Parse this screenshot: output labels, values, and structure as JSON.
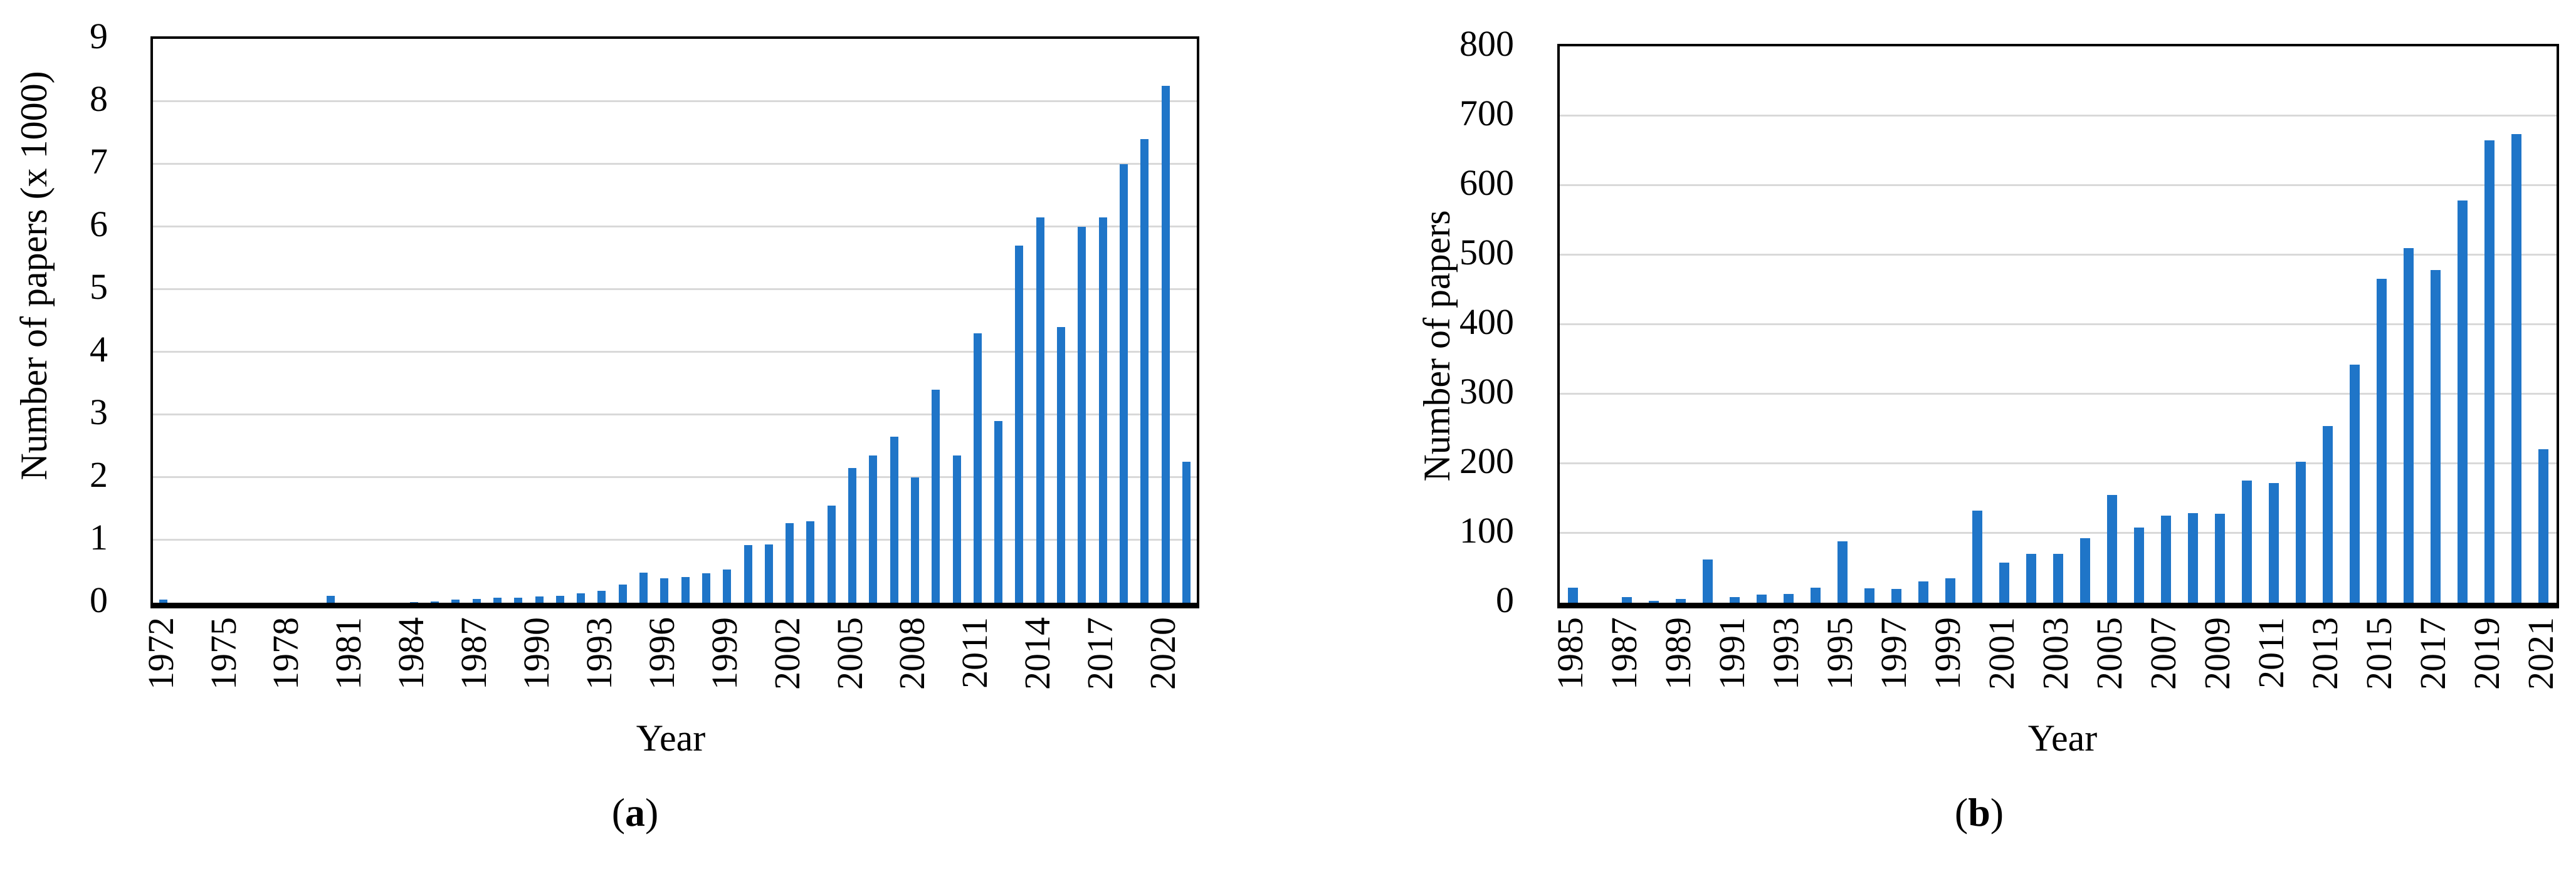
{
  "figure": {
    "background": "#FFFFFF",
    "x_axis_title_a": "Year",
    "x_axis_title_b": "Year"
  },
  "colors": {
    "bar": "#1F75C8",
    "gridline": "#D9D9D9",
    "axis": "#000000",
    "text": "#000000",
    "background": "#FFFFFF"
  },
  "chart_data": [
    {
      "id": "a",
      "type": "bar",
      "title": "",
      "xlabel": "Year",
      "ylabel": "Number of papers (x 1000)",
      "ylim": [
        0,
        9
      ],
      "y_ticks": [
        0,
        1,
        2,
        3,
        4,
        5,
        6,
        7,
        8,
        9
      ],
      "grid": "horizontal",
      "legend": "none",
      "caption": {
        "open": "(",
        "letter": "a",
        "close": ")"
      },
      "x_tick_step": 3,
      "x_tick_labels": [
        "1972",
        "1975",
        "1978",
        "1981",
        "1984",
        "1987",
        "1990",
        "1993",
        "1996",
        "1999",
        "2002",
        "2005",
        "2008",
        "2011",
        "2014",
        "2017",
        "2020"
      ],
      "categories": [
        1972,
        1973,
        1974,
        1975,
        1976,
        1977,
        1978,
        1979,
        1980,
        1981,
        1982,
        1983,
        1984,
        1985,
        1986,
        1987,
        1988,
        1989,
        1990,
        1991,
        1992,
        1993,
        1994,
        1995,
        1996,
        1997,
        1998,
        1999,
        2000,
        2001,
        2002,
        2003,
        2004,
        2005,
        2006,
        2007,
        2008,
        2009,
        2010,
        2011,
        2012,
        2013,
        2014,
        2015,
        2016,
        2017,
        2018,
        2019,
        2020,
        2021
      ],
      "values": [
        0.05,
        0,
        0,
        0,
        0,
        0,
        0,
        0,
        0.11,
        0,
        0,
        0,
        0.01,
        0.02,
        0.05,
        0.06,
        0.08,
        0.08,
        0.1,
        0.11,
        0.15,
        0.19,
        0.29,
        0.48,
        0.39,
        0.41,
        0.47,
        0.53,
        0.92,
        0.93,
        1.27,
        1.3,
        1.55,
        2.15,
        2.35,
        2.65,
        2.0,
        3.4,
        2.35,
        4.3,
        2.9,
        5.7,
        6.15,
        4.4,
        6.0,
        6.15,
        7.0,
        7.4,
        8.25,
        2.25
      ]
    },
    {
      "id": "b",
      "type": "bar",
      "title": "",
      "xlabel": "Year",
      "ylabel": "Number of papers",
      "ylim": [
        0,
        800
      ],
      "y_ticks": [
        0,
        100,
        200,
        300,
        400,
        500,
        600,
        700,
        800
      ],
      "grid": "horizontal",
      "legend": "none",
      "caption": {
        "open": "(",
        "letter": "b",
        "close": ")"
      },
      "x_tick_step": 2,
      "x_tick_labels": [
        "1985",
        "1987",
        "1989",
        "1991",
        "1993",
        "1995",
        "1997",
        "1999",
        "2001",
        "2003",
        "2005",
        "2007",
        "2009",
        "2011",
        "2013",
        "2015",
        "2017",
        "2019",
        "2021"
      ],
      "categories": [
        1985,
        1986,
        1987,
        1988,
        1989,
        1990,
        1991,
        1992,
        1993,
        1994,
        1995,
        1996,
        1997,
        1998,
        1999,
        2000,
        2001,
        2002,
        2003,
        2004,
        2005,
        2006,
        2007,
        2008,
        2009,
        2010,
        2011,
        2012,
        2013,
        2014,
        2015,
        2016,
        2017,
        2018,
        2019,
        2020,
        2021
      ],
      "values": [
        22,
        0,
        8,
        3,
        5,
        62,
        8,
        12,
        13,
        22,
        88,
        21,
        20,
        31,
        35,
        132,
        58,
        70,
        70,
        93,
        155,
        108,
        125,
        129,
        128,
        176,
        172,
        203,
        254,
        342,
        466,
        510,
        478,
        578,
        665,
        674,
        221
      ]
    }
  ]
}
